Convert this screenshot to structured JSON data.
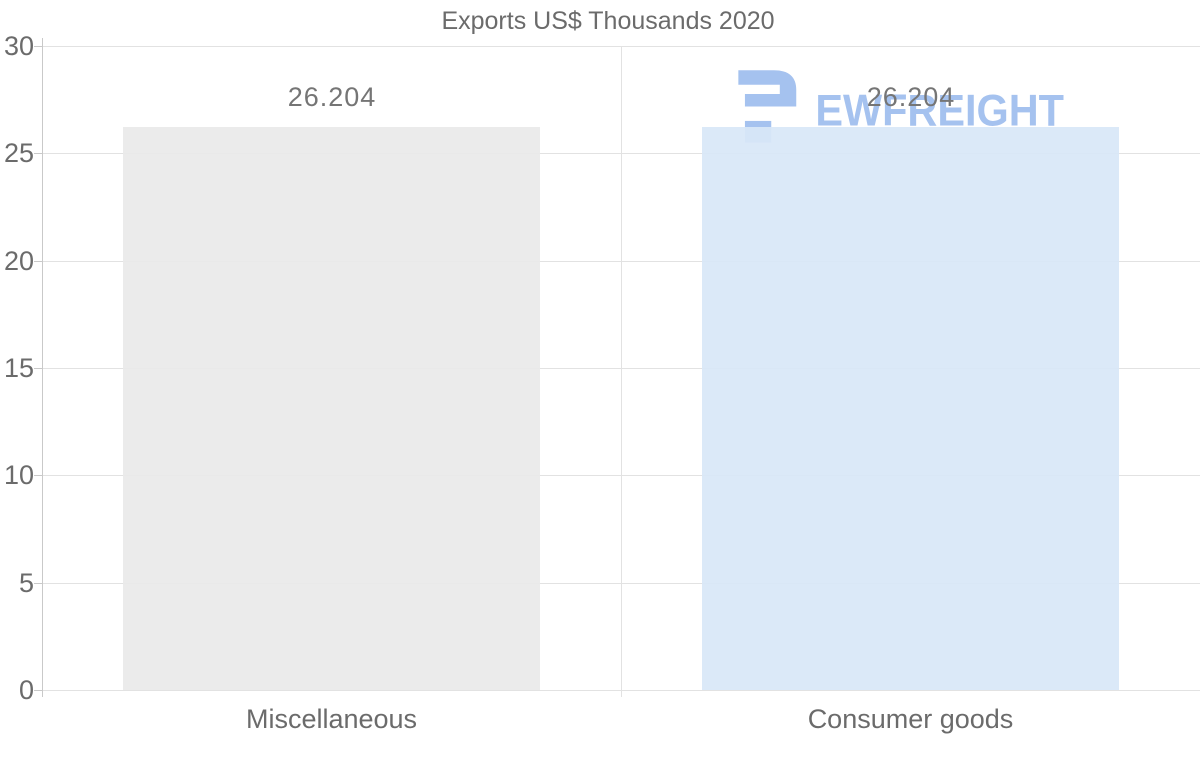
{
  "title": "Exports US$ Thousands 2020",
  "chart_data": {
    "type": "bar",
    "title": "Exports US$ Thousands 2020",
    "categories": [
      "Miscellaneous",
      "Consumer goods"
    ],
    "values": [
      26.204,
      26.204
    ],
    "value_labels": [
      "26.204",
      "26.204"
    ],
    "series_colors": [
      "#e9e9e9",
      "#d8e7f8"
    ],
    "yticks": [
      0,
      5,
      10,
      15,
      20,
      25,
      30
    ],
    "ylim": [
      0,
      30
    ],
    "grid": true,
    "legend": "none",
    "xlabel": "",
    "ylabel": ""
  },
  "watermark": {
    "text": "EWFREIGHT",
    "logo": "ewfreight-logo",
    "color": "#a5c2ef"
  },
  "colors": {
    "grid": "#e2e2e2",
    "axis": "#c9c9c9",
    "text": "#6b6b6b",
    "value_text": "#757575",
    "background": "#ffffff"
  }
}
